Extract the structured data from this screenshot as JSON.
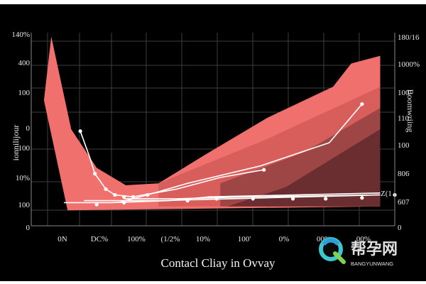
{
  "chart_data": {
    "type": "area",
    "title": "Contacl Cliay in Ovvay",
    "xlabel": "",
    "ylabel_left": "ionnilijour",
    "ylabel_right": "Boomwriing",
    "x_ticks": [
      "0N",
      "DC%",
      "100%",
      "(1/2%",
      "10%",
      "100'",
      "0%",
      "00%",
      "00%"
    ],
    "y_ticks_left": [
      "140%",
      "400",
      "100",
      "0",
      "100",
      "10%",
      "100",
      "0"
    ],
    "y_ticks_right": [
      "180/16",
      "1000%",
      "100",
      "110",
      "100",
      "806",
      "607",
      "0"
    ],
    "annotations": [
      "Z(1"
    ],
    "grid": true,
    "legend": "none",
    "xlim": [
      0,
      10
    ],
    "ylim": [
      0,
      100
    ],
    "series": [
      {
        "kind": "area",
        "color": "#f0706e",
        "points": [
          [
            0.35,
            65
          ],
          [
            0.55,
            98
          ],
          [
            0.7,
            85
          ],
          [
            1.1,
            50
          ],
          [
            1.8,
            30
          ],
          [
            2.6,
            21
          ],
          [
            3.5,
            22
          ],
          [
            4.8,
            37
          ],
          [
            6.5,
            56
          ],
          [
            8.3,
            72
          ],
          [
            8.8,
            84
          ],
          [
            9.6,
            88
          ],
          [
            9.6,
            10
          ],
          [
            1.0,
            8
          ]
        ]
      },
      {
        "kind": "area",
        "color": "#d85e5c",
        "points": [
          [
            3.5,
            22
          ],
          [
            6.5,
            45
          ],
          [
            9.6,
            72
          ],
          [
            9.6,
            10
          ],
          [
            3.5,
            10
          ]
        ]
      },
      {
        "kind": "area",
        "color": "#9e4646",
        "points": [
          [
            5.2,
            22
          ],
          [
            7.5,
            38
          ],
          [
            9.6,
            61
          ],
          [
            9.6,
            10
          ],
          [
            5.2,
            10
          ]
        ]
      },
      {
        "kind": "area",
        "color": "#6a2e30",
        "points": [
          [
            5.4,
            10
          ],
          [
            7.0,
            20
          ],
          [
            9.6,
            50
          ],
          [
            9.6,
            10
          ]
        ]
      },
      {
        "kind": "line",
        "color": "#ffffff",
        "points": [
          [
            1.45,
            13
          ],
          [
            3.5,
            13
          ],
          [
            9.6,
            16
          ]
        ]
      },
      {
        "kind": "line",
        "color": "#ffffff",
        "points": [
          [
            2.55,
            14
          ],
          [
            4.0,
            14
          ],
          [
            6.0,
            15
          ],
          [
            8.0,
            15.5
          ],
          [
            9.6,
            16
          ]
        ]
      },
      {
        "kind": "line",
        "color": "#ffffff",
        "points": [
          [
            0.9,
            12
          ],
          [
            2.2,
            12
          ],
          [
            3.8,
            13
          ],
          [
            4.9,
            15
          ],
          [
            9.6,
            17
          ]
        ]
      },
      {
        "kind": "line",
        "color": "#ffffff",
        "points": [
          [
            2.4,
            12
          ],
          [
            3.2,
            16
          ],
          [
            4.3,
            22
          ],
          [
            6.3,
            31
          ],
          [
            8.2,
            43
          ],
          [
            9.1,
            63
          ]
        ]
      },
      {
        "kind": "line",
        "color": "#ffffff",
        "points": [
          [
            1.35,
            49
          ],
          [
            1.6,
            36
          ],
          [
            1.75,
            27
          ],
          [
            2.05,
            19
          ],
          [
            2.3,
            16
          ],
          [
            2.8,
            15
          ],
          [
            4.0,
            19
          ],
          [
            5.2,
            25
          ],
          [
            6.4,
            29
          ]
        ]
      }
    ],
    "markers": [
      [
        1.35,
        49
      ],
      [
        1.75,
        27
      ],
      [
        2.05,
        19
      ],
      [
        2.3,
        16
      ],
      [
        2.55,
        15
      ],
      [
        2.8,
        15
      ],
      [
        3.2,
        16
      ],
      [
        6.4,
        29
      ],
      [
        9.1,
        63
      ],
      [
        1.8,
        11
      ],
      [
        2.55,
        12
      ],
      [
        4.3,
        13
      ],
      [
        5.1,
        14
      ],
      [
        6.1,
        14
      ],
      [
        7.2,
        14
      ],
      [
        8.1,
        14
      ],
      [
        9.1,
        14.5
      ],
      [
        10.0,
        16
      ]
    ],
    "colors": {
      "background": "#000000",
      "grid": "#3e3e3e",
      "accent": "#f0706e"
    }
  },
  "watermark": {
    "name": "帮孕网",
    "sub": "BANGYUNWANG"
  }
}
